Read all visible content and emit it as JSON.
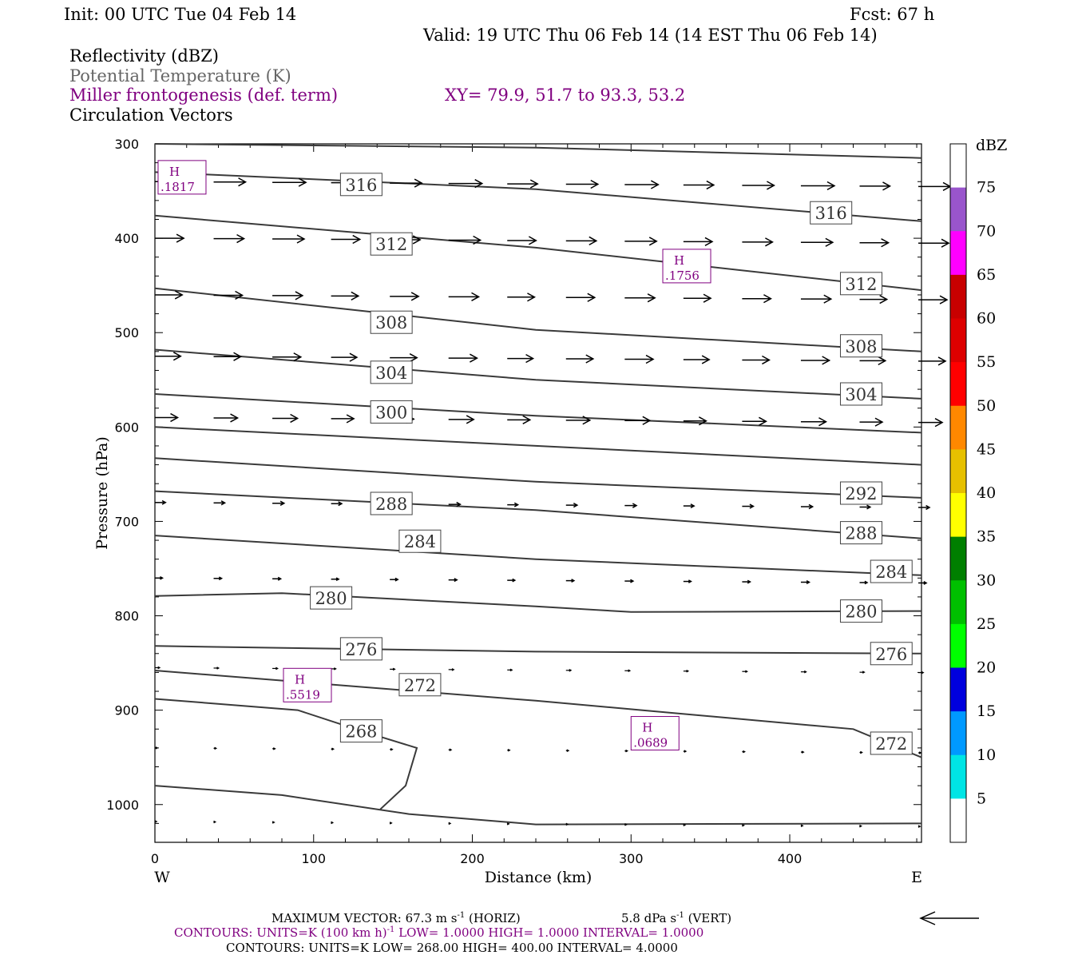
{
  "header": {
    "init": "Init: 00 UTC Tue 04 Feb 14",
    "fcst": "Fcst:   67 h",
    "valid": "Valid: 19 UTC Thu 06 Feb 14 (14 EST Thu 06 Feb 14)",
    "field1": "Reflectivity (dBZ)",
    "field2": "Potential Temperature (K)",
    "field3": "Miller frontogenesis (def. term)",
    "xy": "XY=  79.9, 51.7 to  93.3, 53.2",
    "field4": "Circulation Vectors"
  },
  "colors": {
    "theta": "#3a3a3a",
    "fronto": "#800080",
    "gray_text": "#666666"
  },
  "chart_data": {
    "type": "line",
    "xlabel": "Distance (km)",
    "ylabel": "Pressure (hPa)",
    "xlim": [
      0,
      483
    ],
    "ylim": [
      1040,
      300
    ],
    "x_ticks": [
      "0",
      "100",
      "200",
      "300",
      "400"
    ],
    "y_ticks": [
      "300",
      "400",
      "500",
      "600",
      "700",
      "800",
      "900",
      "1000"
    ],
    "x_left_label": "W",
    "x_right_label": "E",
    "theta_contours": [
      {
        "points": [
          [
            0,
            300
          ],
          [
            240,
            304
          ],
          [
            483,
            315
          ]
        ]
      },
      {
        "points": [
          [
            0,
            330
          ],
          [
            240,
            348
          ],
          [
            483,
            382
          ]
        ],
        "labels": [
          {
            "x": 130,
            "y": 343,
            "t": "316"
          },
          {
            "x": 426,
            "y": 373,
            "t": "316"
          }
        ]
      },
      {
        "points": [
          [
            0,
            376
          ],
          [
            240,
            410
          ],
          [
            483,
            455
          ]
        ],
        "labels": [
          {
            "x": 149,
            "y": 406,
            "t": "312"
          },
          {
            "x": 445,
            "y": 448,
            "t": "312"
          }
        ]
      },
      {
        "points": [
          [
            0,
            453
          ],
          [
            240,
            497
          ],
          [
            483,
            520
          ]
        ],
        "labels": [
          {
            "x": 149,
            "y": 489,
            "t": "308"
          },
          {
            "x": 445,
            "y": 514,
            "t": "308"
          }
        ]
      },
      {
        "points": [
          [
            0,
            518
          ],
          [
            240,
            550
          ],
          [
            483,
            570
          ]
        ],
        "labels": [
          {
            "x": 149,
            "y": 542,
            "t": "304"
          },
          {
            "x": 445,
            "y": 565,
            "t": "304"
          }
        ]
      },
      {
        "points": [
          [
            0,
            565
          ],
          [
            240,
            588
          ],
          [
            483,
            606
          ]
        ],
        "labels": [
          {
            "x": 149,
            "y": 584,
            "t": "300"
          }
        ]
      },
      {
        "points": [
          [
            0,
            600
          ],
          [
            240,
            620
          ],
          [
            483,
            640
          ]
        ]
      },
      {
        "points": [
          [
            0,
            633
          ],
          [
            240,
            658
          ],
          [
            483,
            675
          ]
        ],
        "labels": [
          {
            "x": 445,
            "y": 670,
            "t": "292"
          }
        ]
      },
      {
        "points": [
          [
            0,
            668
          ],
          [
            240,
            688
          ],
          [
            483,
            718
          ]
        ],
        "labels": [
          {
            "x": 149,
            "y": 681,
            "t": "288"
          },
          {
            "x": 445,
            "y": 712,
            "t": "288"
          }
        ]
      },
      {
        "points": [
          [
            0,
            715
          ],
          [
            240,
            740
          ],
          [
            483,
            757
          ]
        ],
        "labels": [
          {
            "x": 167,
            "y": 721,
            "t": "284"
          },
          {
            "x": 464,
            "y": 753,
            "t": "284"
          }
        ]
      },
      {
        "points": [
          [
            0,
            779
          ],
          [
            80,
            776
          ],
          [
            240,
            790
          ],
          [
            300,
            796
          ],
          [
            483,
            795
          ]
        ],
        "labels": [
          {
            "x": 111,
            "y": 781,
            "t": "280"
          },
          {
            "x": 445,
            "y": 795,
            "t": "280"
          }
        ]
      },
      {
        "points": [
          [
            0,
            832
          ],
          [
            240,
            838
          ],
          [
            483,
            840
          ]
        ],
        "labels": [
          {
            "x": 130,
            "y": 835,
            "t": "276"
          },
          {
            "x": 464,
            "y": 840,
            "t": "276"
          }
        ]
      },
      {
        "points": [
          [
            0,
            858
          ],
          [
            240,
            890
          ],
          [
            440,
            920
          ],
          [
            483,
            950
          ]
        ],
        "labels": [
          {
            "x": 167,
            "y": 873,
            "t": "272"
          },
          {
            "x": 464,
            "y": 935,
            "t": "272"
          }
        ]
      },
      {
        "points": [
          [
            0,
            888
          ],
          [
            90,
            900
          ],
          [
            130,
            922
          ],
          [
            165,
            940
          ],
          [
            158,
            980
          ],
          [
            142,
            1005
          ]
        ],
        "labels": [
          {
            "x": 130,
            "y": 922,
            "t": "268"
          }
        ]
      },
      {
        "points": [
          [
            0,
            980
          ],
          [
            80,
            990
          ],
          [
            160,
            1010
          ],
          [
            240,
            1021
          ],
          [
            483,
            1020
          ]
        ]
      }
    ],
    "fronto_highs": [
      {
        "x": 2,
        "y": 338,
        "label": "H",
        "value": ".1817"
      },
      {
        "x": 320,
        "y": 432,
        "label": "H",
        "value": ".1756"
      },
      {
        "x": 81,
        "y": 876,
        "label": "H",
        "value": ".5519"
      },
      {
        "x": 300,
        "y": 927,
        "label": "H",
        "value": ".0689"
      }
    ],
    "vector_levels": [
      {
        "p": 340,
        "u": 40
      },
      {
        "p": 400,
        "u": 38
      },
      {
        "p": 460,
        "u": 36
      },
      {
        "p": 525,
        "u": 34
      },
      {
        "p": 590,
        "u": 30
      },
      {
        "p": 680,
        "u": 14
      },
      {
        "p": 760,
        "u": 10
      },
      {
        "p": 855,
        "u": 6
      },
      {
        "p": 940,
        "u": 3
      },
      {
        "p": 1018,
        "u": 2
      }
    ],
    "colorbar": {
      "title": "dBZ",
      "labels": [
        "75",
        "70",
        "65",
        "60",
        "55",
        "50",
        "45",
        "40",
        "35",
        "30",
        "25",
        "20",
        "15",
        "10",
        "5"
      ],
      "colors": [
        "#ffffff",
        "#9955cc",
        "#ff00ff",
        "#c80000",
        "#dd0000",
        "#ff0000",
        "#ff8800",
        "#e6c000",
        "#ffff00",
        "#007f00",
        "#00c000",
        "#00ff00",
        "#0000dd",
        "#0099ff",
        "#00e5e5",
        "#ffffff"
      ]
    }
  },
  "footer": {
    "max_vector": "MAXIMUM VECTOR:  67.3 m s",
    "max_vector_horiz": " (HORIZ)",
    "max_vector_vert": "5.8 dPa s",
    "max_vector_vert2": " (VERT)",
    "contours1_a": "CONTOURS:  UNITS=K (100 km h)",
    "contours1_b": "  LOW=   1.0000       HIGH=   1.0000       INTERVAL=    1.0000",
    "contours2": "CONTOURS:  UNITS=K  LOW=   268.00       HIGH=   400.00       INTERVAL=     4.0000",
    "exp_minus1": "-1"
  }
}
